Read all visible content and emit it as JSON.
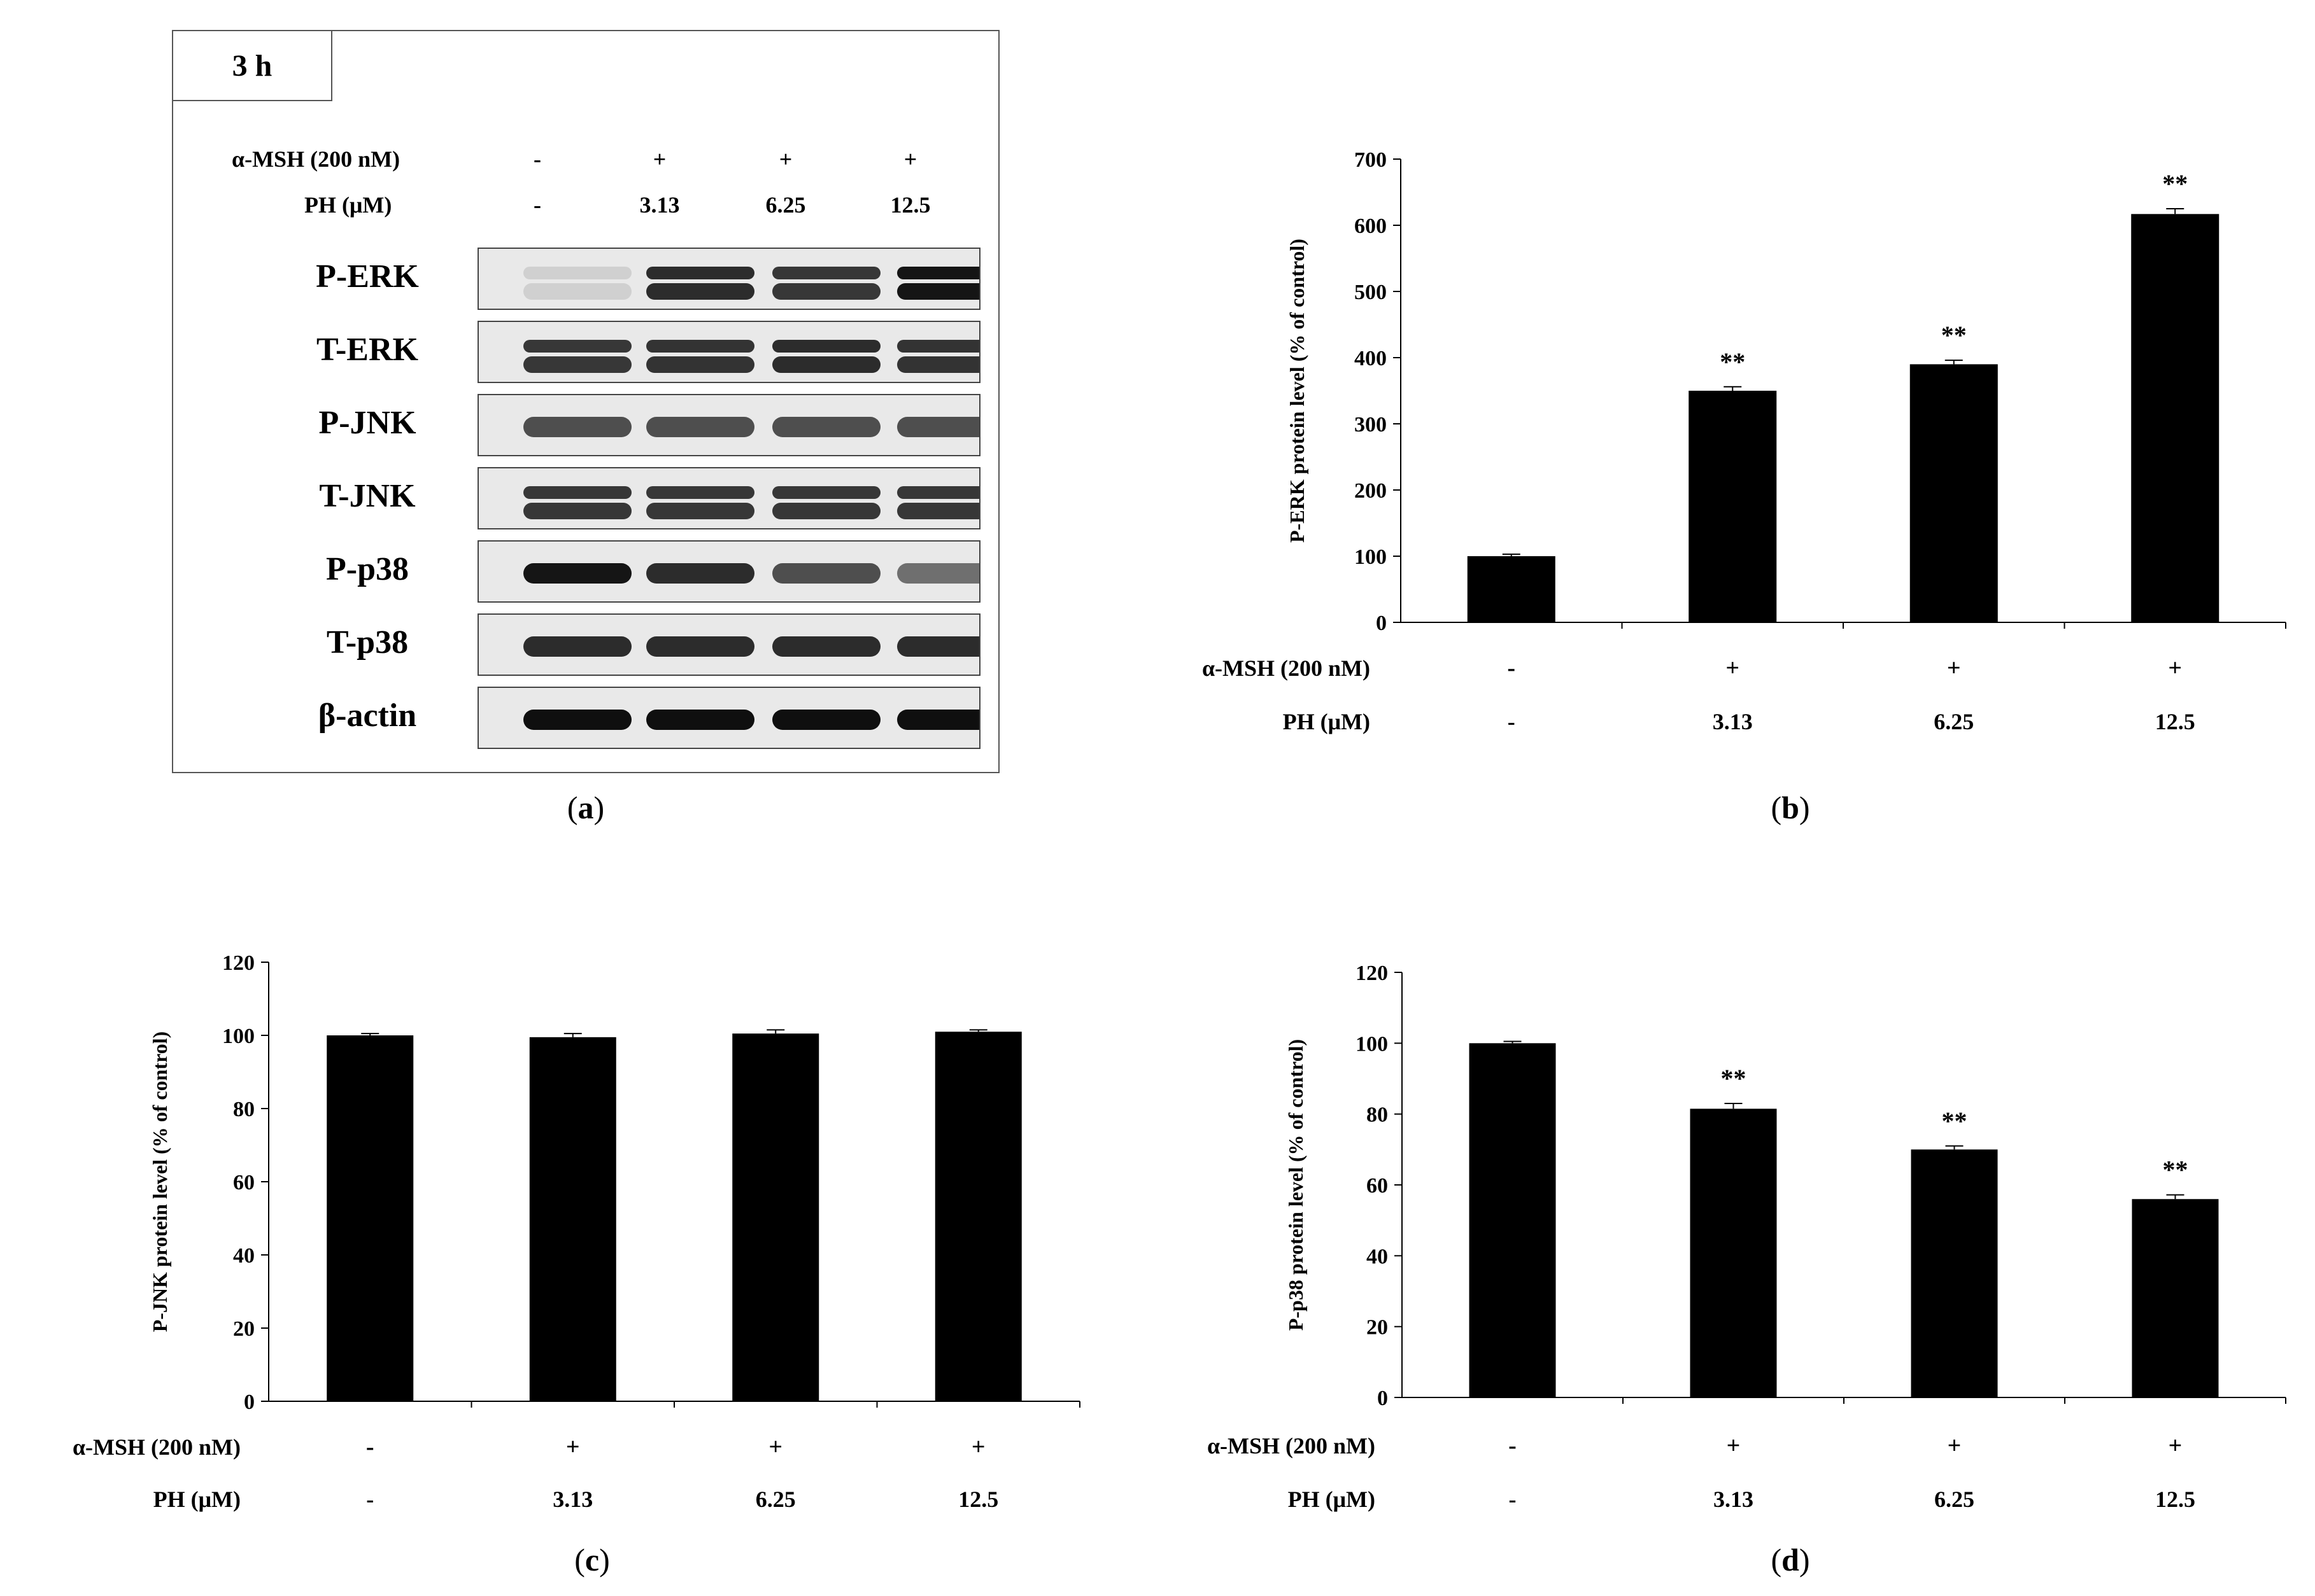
{
  "panel_a": {
    "panel_label": "a",
    "time": "3 h",
    "conditions": {
      "msh_label": "α-MSH (200 nM)",
      "ph_label": "PH (μM)",
      "msh_values": [
        "-",
        "+",
        "+",
        "+"
      ],
      "ph_values": [
        "-",
        "3.13",
        "6.25",
        "12.5"
      ]
    },
    "blots": [
      {
        "label": "P-ERK",
        "intensities": [
          0.12,
          0.85,
          0.8,
          0.95
        ],
        "double": true
      },
      {
        "label": "T-ERK",
        "intensities": [
          0.8,
          0.82,
          0.85,
          0.82
        ],
        "double": true
      },
      {
        "label": "P-JNK",
        "intensities": [
          0.7,
          0.7,
          0.7,
          0.7
        ],
        "double": false
      },
      {
        "label": "T-JNK",
        "intensities": [
          0.8,
          0.8,
          0.8,
          0.8
        ],
        "double": true
      },
      {
        "label": "P-p38",
        "intensities": [
          0.95,
          0.85,
          0.7,
          0.55
        ],
        "double": false
      },
      {
        "label": "T-p38",
        "intensities": [
          0.85,
          0.85,
          0.85,
          0.85
        ],
        "double": false
      },
      {
        "label": "β-actin",
        "intensities": [
          0.98,
          0.98,
          0.98,
          0.98
        ],
        "double": false
      }
    ]
  },
  "chart_data": [
    {
      "type": "bar",
      "panel_label": "b",
      "ylabel": "P-ERK protein level (% of control)",
      "ylim": [
        0,
        700
      ],
      "yticks": [
        0,
        100,
        200,
        300,
        400,
        500,
        600,
        700
      ],
      "categories": [
        "-/-",
        "+/3.13",
        "+/6.25",
        "+/12.5"
      ],
      "values": [
        100,
        350,
        390,
        617
      ],
      "errors": [
        3,
        6,
        6,
        8
      ],
      "significance": [
        "",
        "**",
        "**",
        "**"
      ],
      "msh_label": "α-MSH (200 nM)",
      "ph_label": "PH (μM)",
      "msh_values": [
        "-",
        "+",
        "+",
        "+"
      ],
      "ph_values": [
        "-",
        "3.13",
        "6.25",
        "12.5"
      ],
      "bar_color": "#000000"
    },
    {
      "type": "bar",
      "panel_label": "c",
      "ylabel": "P-JNK protein level (% of control)",
      "ylim": [
        0,
        120
      ],
      "yticks": [
        0,
        20,
        40,
        60,
        80,
        100,
        120
      ],
      "categories": [
        "-/-",
        "+/3.13",
        "+/6.25",
        "+/12.5"
      ],
      "values": [
        100,
        99.5,
        100.5,
        101
      ],
      "errors": [
        0.5,
        1.0,
        1.0,
        0.5
      ],
      "significance": [
        "",
        "",
        "",
        ""
      ],
      "msh_label": "α-MSH (200 nM)",
      "ph_label": "PH (μM)",
      "msh_values": [
        "-",
        "+",
        "+",
        "+"
      ],
      "ph_values": [
        "-",
        "3.13",
        "6.25",
        "12.5"
      ],
      "bar_color": "#000000"
    },
    {
      "type": "bar",
      "panel_label": "d",
      "ylabel": "P-p38 protein level (% of control)",
      "ylim": [
        0,
        120
      ],
      "yticks": [
        0,
        20,
        40,
        60,
        80,
        100,
        120
      ],
      "categories": [
        "-/-",
        "+/3.13",
        "+/6.25",
        "+/12.5"
      ],
      "values": [
        100,
        81.5,
        70,
        56
      ],
      "errors": [
        0.5,
        1.5,
        1.0,
        1.2
      ],
      "significance": [
        "",
        "**",
        "**",
        "**"
      ],
      "msh_label": "α-MSH (200 nM)",
      "ph_label": "PH (μM)",
      "msh_values": [
        "-",
        "+",
        "+",
        "+"
      ],
      "ph_values": [
        "-",
        "3.13",
        "6.25",
        "12.5"
      ],
      "bar_color": "#000000"
    }
  ]
}
